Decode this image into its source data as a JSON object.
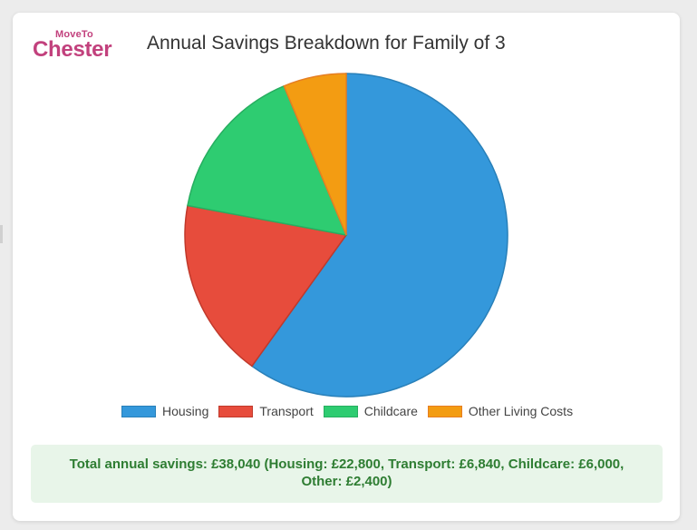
{
  "logo": {
    "top": "MoveTo",
    "main": "Chester"
  },
  "colors": {
    "brand": "#c2417d",
    "housing": "#3498db",
    "transport": "#e74c3c",
    "childcare": "#2ecc71",
    "other": "#f39c12",
    "summary_bg": "#e8f5e9",
    "summary_text": "#2e7d32"
  },
  "chart_data": {
    "type": "pie",
    "title": "Annual Savings Breakdown for Family of 3",
    "categories": [
      "Housing",
      "Transport",
      "Childcare",
      "Other Living Costs"
    ],
    "values": [
      22800,
      6840,
      6000,
      2400
    ],
    "colors": [
      "#3498db",
      "#e74c3c",
      "#2ecc71",
      "#f39c12"
    ],
    "border_colors": [
      "#2980b9",
      "#c0392b",
      "#27ae60",
      "#e67e22"
    ],
    "legend_position": "bottom"
  },
  "summary": {
    "text": "Total annual savings: £38,040 (Housing: £22,800, Transport: £6,840, Childcare: £6,000, Other: £2,400)"
  }
}
